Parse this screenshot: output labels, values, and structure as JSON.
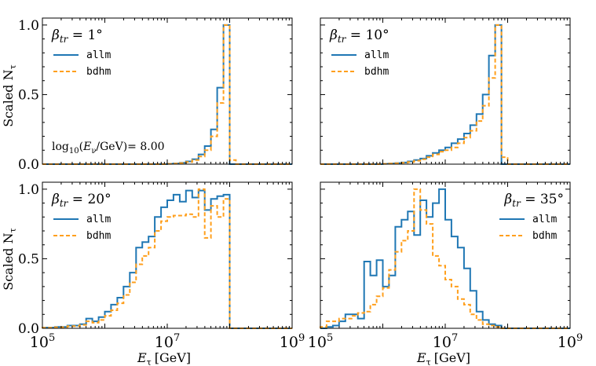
{
  "figure": {
    "ylabel": "Scaled N",
    "ylabel_sub": "τ",
    "xlabel": "E",
    "xlabel_sub": "τ",
    "xlabel_unit": "[GeV]",
    "x_tick_labels": [
      {
        "base": "10",
        "exp": "5"
      },
      {
        "base": "10",
        "exp": "7"
      },
      {
        "base": "10",
        "exp": "9"
      }
    ],
    "y_tick_labels": [
      "0.0",
      "0.5",
      "1.0"
    ],
    "annotation_text": "log10(Eν/GeV)= 8.00",
    "annotation_parts": {
      "fn": "log",
      "fn_sub": "10",
      "open": "(",
      "E": "E",
      "E_sub": "ν",
      "rest": "/GeV)= 8.00"
    },
    "colors": {
      "allm": "#1f77b4",
      "bdhm": "#ff9f1c"
    }
  },
  "chart_data": [
    {
      "type": "step-histogram",
      "panel": "top-left",
      "title": "βtr = 1°",
      "title_parts": {
        "beta": "β",
        "sub": "tr",
        "eq": " = 1°"
      },
      "legend_placement": "upper-left",
      "xscale": "log",
      "xlim_exp": [
        5,
        9
      ],
      "ylim": [
        0,
        1.05
      ],
      "bin_edges_log10": [
        5,
        5.1,
        5.2,
        5.3,
        5.4,
        5.5,
        5.6,
        5.7,
        5.8,
        5.9,
        6,
        6.1,
        6.2,
        6.3,
        6.4,
        6.5,
        6.6,
        6.7,
        6.8,
        6.9,
        7,
        7.1,
        7.2,
        7.3,
        7.4,
        7.5,
        7.6,
        7.7,
        7.8,
        7.9,
        8,
        8.1,
        8.2,
        8.3,
        8.4,
        8.5,
        8.6,
        8.7,
        8.8,
        8.9,
        9
      ],
      "series": [
        {
          "name": "allm",
          "style": "solid",
          "values": [
            0,
            0,
            0,
            0,
            0,
            0,
            0,
            0,
            0,
            0,
            0,
            0,
            0,
            0,
            0,
            0,
            0,
            0,
            0,
            0,
            0.003,
            0.005,
            0.01,
            0.02,
            0.035,
            0.07,
            0.13,
            0.25,
            0.55,
            1.0,
            0,
            0,
            0,
            0,
            0,
            0,
            0,
            0,
            0,
            0
          ]
        },
        {
          "name": "bdhm",
          "style": "dashed",
          "values": [
            0,
            0,
            0,
            0,
            0,
            0,
            0,
            0,
            0,
            0,
            0,
            0,
            0,
            0,
            0,
            0,
            0,
            0,
            0,
            0,
            0.002,
            0.004,
            0.008,
            0.016,
            0.03,
            0.055,
            0.1,
            0.2,
            0.44,
            1.0,
            0.03,
            0,
            0,
            0,
            0,
            0,
            0,
            0,
            0,
            0
          ]
        }
      ]
    },
    {
      "type": "step-histogram",
      "panel": "top-right",
      "title": "βtr = 10°",
      "title_parts": {
        "beta": "β",
        "sub": "tr",
        "eq": " = 10°"
      },
      "legend_placement": "upper-left",
      "xscale": "log",
      "xlim_exp": [
        5,
        9
      ],
      "ylim": [
        0,
        1.05
      ],
      "bin_edges_log10": [
        5,
        5.1,
        5.2,
        5.3,
        5.4,
        5.5,
        5.6,
        5.7,
        5.8,
        5.9,
        6,
        6.1,
        6.2,
        6.3,
        6.4,
        6.5,
        6.6,
        6.7,
        6.8,
        6.9,
        7,
        7.1,
        7.2,
        7.3,
        7.4,
        7.5,
        7.6,
        7.7,
        7.8,
        7.9,
        8,
        8.1,
        8.2,
        8.3,
        8.4,
        8.5,
        8.6,
        8.7,
        8.8,
        8.9,
        9
      ],
      "series": [
        {
          "name": "allm",
          "style": "solid",
          "values": [
            0,
            0,
            0,
            0,
            0,
            0,
            0,
            0,
            0,
            0,
            0.003,
            0.005,
            0.008,
            0.012,
            0.02,
            0.03,
            0.04,
            0.06,
            0.08,
            0.1,
            0.12,
            0.15,
            0.18,
            0.22,
            0.28,
            0.36,
            0.5,
            0.78,
            1.0,
            0,
            0,
            0,
            0,
            0,
            0,
            0,
            0,
            0,
            0,
            0
          ]
        },
        {
          "name": "bdhm",
          "style": "dashed",
          "values": [
            0,
            0,
            0,
            0,
            0,
            0,
            0,
            0,
            0,
            0,
            0.002,
            0.004,
            0.006,
            0.01,
            0.016,
            0.025,
            0.035,
            0.05,
            0.07,
            0.09,
            0.1,
            0.12,
            0.15,
            0.19,
            0.24,
            0.31,
            0.42,
            0.62,
            1.0,
            0.05,
            0,
            0,
            0,
            0,
            0,
            0,
            0,
            0,
            0,
            0
          ]
        }
      ]
    },
    {
      "type": "step-histogram",
      "panel": "bottom-left",
      "title": "βtr = 20°",
      "title_parts": {
        "beta": "β",
        "sub": "tr",
        "eq": " = 20°"
      },
      "legend_placement": "upper-left",
      "xscale": "log",
      "xlim_exp": [
        5,
        9
      ],
      "ylim": [
        0,
        1.05
      ],
      "bin_edges_log10": [
        5,
        5.1,
        5.2,
        5.3,
        5.4,
        5.5,
        5.6,
        5.7,
        5.8,
        5.9,
        6,
        6.1,
        6.2,
        6.3,
        6.4,
        6.5,
        6.6,
        6.7,
        6.8,
        6.9,
        7,
        7.1,
        7.2,
        7.3,
        7.4,
        7.5,
        7.6,
        7.7,
        7.8,
        7.9,
        8,
        8.1,
        8.2,
        8.3,
        8.4,
        8.5,
        8.6,
        8.7,
        8.8,
        8.9,
        9
      ],
      "series": [
        {
          "name": "allm",
          "style": "solid",
          "values": [
            0.005,
            0.005,
            0.01,
            0.01,
            0.02,
            0.02,
            0.03,
            0.07,
            0.05,
            0.08,
            0.12,
            0.17,
            0.22,
            0.3,
            0.4,
            0.58,
            0.62,
            0.66,
            0.8,
            0.87,
            0.92,
            0.96,
            0.91,
            0.99,
            0.94,
            0.99,
            0.85,
            0.93,
            0.95,
            0.96,
            0,
            0,
            0,
            0,
            0,
            0,
            0,
            0,
            0,
            0
          ]
        },
        {
          "name": "bdhm",
          "style": "dashed",
          "values": [
            0.004,
            0.004,
            0.008,
            0.008,
            0.015,
            0.015,
            0.025,
            0.05,
            0.04,
            0.06,
            0.09,
            0.13,
            0.18,
            0.24,
            0.33,
            0.46,
            0.52,
            0.58,
            0.7,
            0.77,
            0.8,
            0.81,
            0.81,
            0.82,
            0.8,
            1.0,
            0.65,
            0.88,
            0.8,
            0.93,
            0,
            0,
            0,
            0,
            0,
            0,
            0,
            0,
            0,
            0
          ]
        }
      ]
    },
    {
      "type": "step-histogram",
      "panel": "bottom-right",
      "title": "βtr = 35°",
      "title_parts": {
        "beta": "β",
        "sub": "tr",
        "eq": " = 35°"
      },
      "legend_placement": "upper-right",
      "xscale": "log",
      "xlim_exp": [
        5,
        9
      ],
      "ylim": [
        0,
        1.05
      ],
      "bin_edges_log10": [
        5,
        5.1,
        5.2,
        5.3,
        5.4,
        5.5,
        5.6,
        5.7,
        5.8,
        5.9,
        6,
        6.1,
        6.2,
        6.3,
        6.4,
        6.5,
        6.6,
        6.7,
        6.8,
        6.9,
        7,
        7.1,
        7.2,
        7.3,
        7.4,
        7.5,
        7.6,
        7.7,
        7.8,
        7.9,
        8,
        8.1,
        8.2,
        8.3,
        8.4,
        8.5,
        8.6,
        8.7,
        8.8,
        8.9,
        9
      ],
      "series": [
        {
          "name": "allm",
          "style": "solid",
          "values": [
            0,
            0.01,
            0.02,
            0.05,
            0.1,
            0.1,
            0.07,
            0.48,
            0.38,
            0.49,
            0.3,
            0.38,
            0.73,
            0.78,
            0.84,
            0.67,
            0.92,
            0.8,
            0.9,
            1.0,
            0.78,
            0.66,
            0.58,
            0.43,
            0.27,
            0.12,
            0.06,
            0.03,
            0.02,
            0,
            0,
            0,
            0,
            0,
            0,
            0,
            0,
            0,
            0,
            0
          ]
        },
        {
          "name": "bdhm",
          "style": "dashed",
          "values": [
            0.01,
            0.05,
            0.05,
            0.07,
            0.07,
            0.09,
            0.11,
            0.12,
            0.17,
            0.23,
            0.29,
            0.42,
            0.55,
            0.63,
            0.7,
            1.0,
            0.85,
            0.75,
            0.52,
            0.45,
            0.35,
            0.3,
            0.21,
            0.17,
            0.1,
            0.06,
            0.03,
            0.02,
            0.01,
            0,
            0,
            0,
            0,
            0,
            0,
            0,
            0,
            0,
            0,
            0
          ]
        }
      ]
    }
  ]
}
